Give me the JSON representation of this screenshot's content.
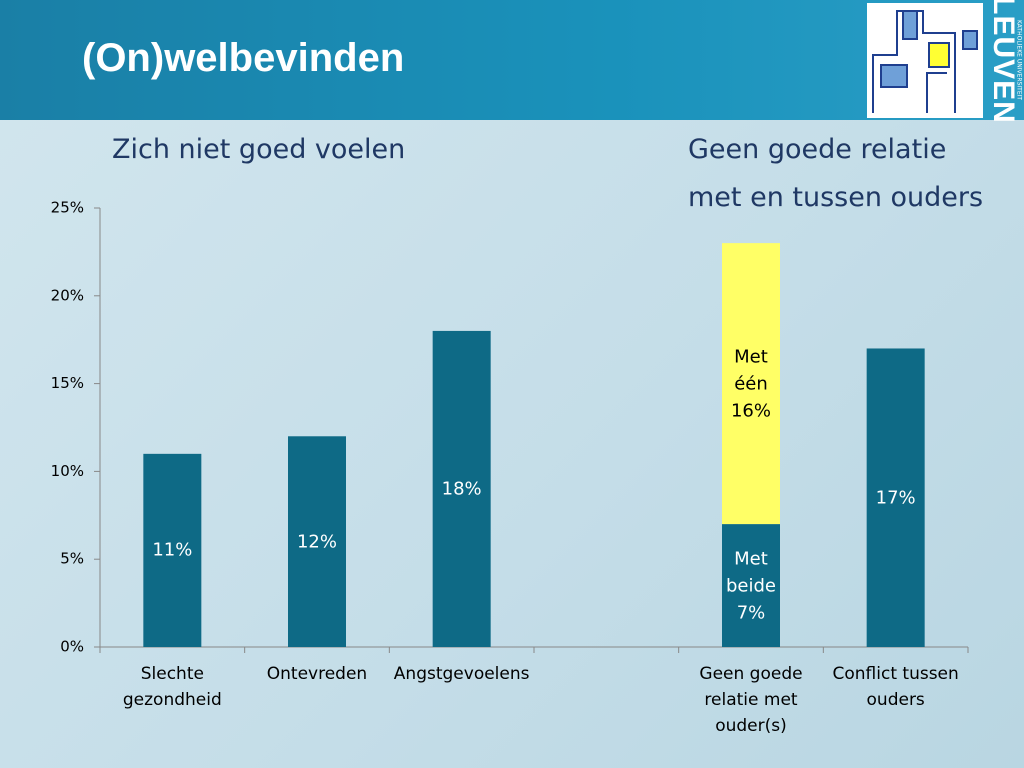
{
  "chart_data": {
    "type": "bar",
    "stacked": true,
    "title": "(On)welbevinden",
    "annotations": [
      "Zich niet goed voelen",
      "Geen goede relatie met en tussen ouders"
    ],
    "categories": [
      "Slechte gezondheid",
      "Ontevreden",
      "Angstgevoelens",
      null,
      "Geen goede relatie met ouder(s)",
      "Conflict tussen ouders"
    ],
    "series": [
      {
        "color": "#0e6a86",
        "values": [
          11,
          12,
          18,
          null,
          7,
          17
        ],
        "value_labels": [
          "11%",
          "12%",
          "18%",
          null,
          "Met beide 7%",
          "17%"
        ]
      },
      {
        "color": "#ffff66",
        "values": [
          null,
          null,
          null,
          null,
          16,
          null
        ],
        "value_labels": [
          null,
          null,
          null,
          null,
          "Met één 16%",
          null
        ]
      }
    ],
    "ylim": [
      0,
      25
    ],
    "yticks": [
      {
        "value": 0,
        "label": "0%"
      },
      {
        "value": 5,
        "label": "5%"
      },
      {
        "value": 10,
        "label": "10%"
      },
      {
        "value": 15,
        "label": "15%"
      },
      {
        "value": 20,
        "label": "20%"
      },
      {
        "value": 25,
        "label": "25%"
      }
    ],
    "grid": false
  },
  "logo": {
    "name": "LEUVEN",
    "subtitle": "KATHOLIEKE UNIVERSITEIT"
  }
}
